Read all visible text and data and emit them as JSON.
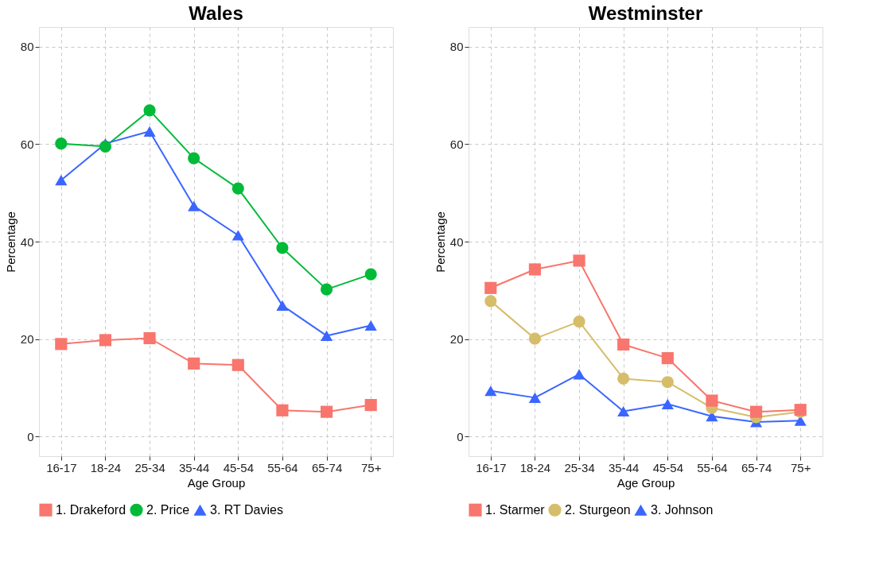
{
  "chart_data": [
    {
      "type": "line",
      "title": "Wales",
      "xlabel": "Age Group",
      "ylabel": "Percentage",
      "categories": [
        "16-17",
        "18-24",
        "25-34",
        "35-44",
        "45-54",
        "55-64",
        "65-74",
        "75+"
      ],
      "ylim": [
        -4,
        84
      ],
      "yticks": [
        0,
        20,
        40,
        60,
        80
      ],
      "grid": true,
      "legend": "bottom",
      "line_style": "solid",
      "series": [
        {
          "name": "1. Drakeford",
          "color": "#f8766d",
          "marker": "square",
          "values": [
            19.0,
            19.8,
            20.2,
            15.0,
            14.7,
            5.4,
            5.1,
            6.5
          ]
        },
        {
          "name": "2. Price",
          "color": "#00ba38",
          "marker": "circle",
          "values": [
            60.1,
            59.5,
            66.9,
            57.1,
            50.9,
            38.7,
            30.2,
            33.3
          ]
        },
        {
          "name": "3. RT Davies",
          "color": "#3a66ff",
          "marker": "triangle",
          "values": [
            52.6,
            60.1,
            62.6,
            47.3,
            41.3,
            26.9,
            20.7,
            22.8
          ]
        }
      ]
    },
    {
      "type": "line",
      "title": "Westminster",
      "xlabel": "Age Group",
      "ylabel": "Percentage",
      "categories": [
        "16-17",
        "18-24",
        "25-34",
        "35-44",
        "45-54",
        "55-64",
        "65-74",
        "75+"
      ],
      "ylim": [
        -4,
        84
      ],
      "yticks": [
        0,
        20,
        40,
        60,
        80
      ],
      "grid": true,
      "legend": "bottom",
      "line_style": "solid",
      "series": [
        {
          "name": "1. Starmer",
          "color": "#f8766d",
          "marker": "square",
          "values": [
            30.5,
            34.3,
            36.1,
            18.9,
            16.1,
            7.4,
            5.1,
            5.5
          ]
        },
        {
          "name": "2. Sturgeon",
          "color": "#d6bd6a",
          "marker": "circle",
          "values": [
            27.8,
            20.1,
            23.6,
            11.9,
            11.2,
            5.9,
            4.0,
            5.1
          ]
        },
        {
          "name": "3. Johnson",
          "color": "#3a66ff",
          "marker": "triangle",
          "values": [
            9.4,
            8.0,
            12.8,
            5.2,
            6.7,
            4.2,
            3.0,
            3.3
          ]
        }
      ]
    }
  ]
}
